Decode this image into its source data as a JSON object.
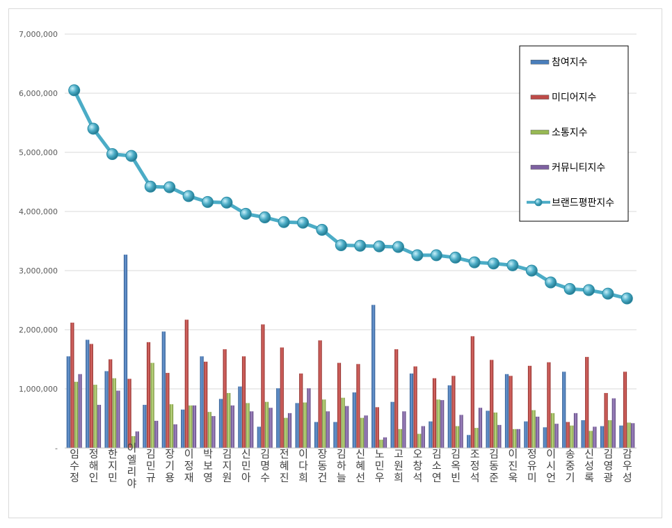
{
  "chart_data": {
    "type": "bar",
    "title": "",
    "xlabel": "",
    "ylabel": "",
    "ylim": [
      0,
      7000000
    ],
    "y_ticks": [
      {
        "value": 0,
        "label": "-"
      },
      {
        "value": 1000000,
        "label": "1,000,000"
      },
      {
        "value": 2000000,
        "label": "2,000,000"
      },
      {
        "value": 3000000,
        "label": "3,000,000"
      },
      {
        "value": 4000000,
        "label": "4,000,000"
      },
      {
        "value": 5000000,
        "label": "5,000,000"
      },
      {
        "value": 6000000,
        "label": "6,000,000"
      },
      {
        "value": 7000000,
        "label": "7,000,000"
      }
    ],
    "grid": true,
    "legend_position": "top-right",
    "categories": [
      "임수정",
      "정해인",
      "한지민",
      "이엘리야",
      "김민규",
      "장기용",
      "이정재",
      "박보영",
      "김지원",
      "신민아",
      "김명수",
      "전혜진",
      "이다희",
      "장동건",
      "김하늘",
      "신혜선",
      "노민우",
      "고원희",
      "오창석",
      "김소연",
      "김옥빈",
      "조정석",
      "김동준",
      "이진욱",
      "정유미",
      "이시언",
      "송중기",
      "신성록",
      "김영광",
      "감우성"
    ],
    "series": [
      {
        "name": "참여지수",
        "type": "bar",
        "color": "#4a7ebb",
        "values": [
          1550000,
          1830000,
          1300000,
          3270000,
          730000,
          1970000,
          650000,
          1550000,
          830000,
          1040000,
          360000,
          1010000,
          760000,
          440000,
          440000,
          940000,
          2420000,
          780000,
          1260000,
          450000,
          1060000,
          220000,
          630000,
          1250000,
          450000,
          350000,
          1290000,
          470000,
          370000,
          380000
        ]
      },
      {
        "name": "미디어지수",
        "type": "bar",
        "color": "#be4b48",
        "values": [
          2120000,
          1760000,
          1500000,
          1170000,
          1790000,
          1270000,
          2170000,
          1460000,
          1670000,
          1550000,
          2090000,
          1700000,
          1260000,
          1820000,
          1440000,
          1420000,
          690000,
          1670000,
          1380000,
          1180000,
          1220000,
          1890000,
          1490000,
          1220000,
          1390000,
          1450000,
          440000,
          1540000,
          930000,
          1290000
        ]
      },
      {
        "name": "소통지수",
        "type": "bar",
        "color": "#98b954",
        "values": [
          1120000,
          1070000,
          1180000,
          200000,
          1440000,
          740000,
          720000,
          610000,
          930000,
          760000,
          780000,
          510000,
          770000,
          820000,
          850000,
          510000,
          140000,
          320000,
          240000,
          820000,
          370000,
          340000,
          600000,
          320000,
          640000,
          590000,
          380000,
          290000,
          470000,
          430000
        ]
      },
      {
        "name": "커뮤니티지수",
        "type": "bar",
        "color": "#7d60a0",
        "values": [
          1250000,
          730000,
          970000,
          280000,
          460000,
          400000,
          720000,
          540000,
          720000,
          620000,
          680000,
          590000,
          1010000,
          620000,
          710000,
          550000,
          180000,
          620000,
          370000,
          810000,
          560000,
          680000,
          390000,
          320000,
          530000,
          410000,
          590000,
          360000,
          840000,
          420000
        ]
      },
      {
        "name": "브랜드평판지수",
        "type": "line",
        "color": "#4bacc6",
        "values": [
          6050000,
          5400000,
          4970000,
          4940000,
          4420000,
          4410000,
          4260000,
          4160000,
          4150000,
          3960000,
          3900000,
          3820000,
          3810000,
          3690000,
          3430000,
          3420000,
          3410000,
          3400000,
          3260000,
          3260000,
          3220000,
          3140000,
          3120000,
          3090000,
          3000000,
          2800000,
          2690000,
          2670000,
          2610000,
          2530000
        ]
      }
    ]
  }
}
